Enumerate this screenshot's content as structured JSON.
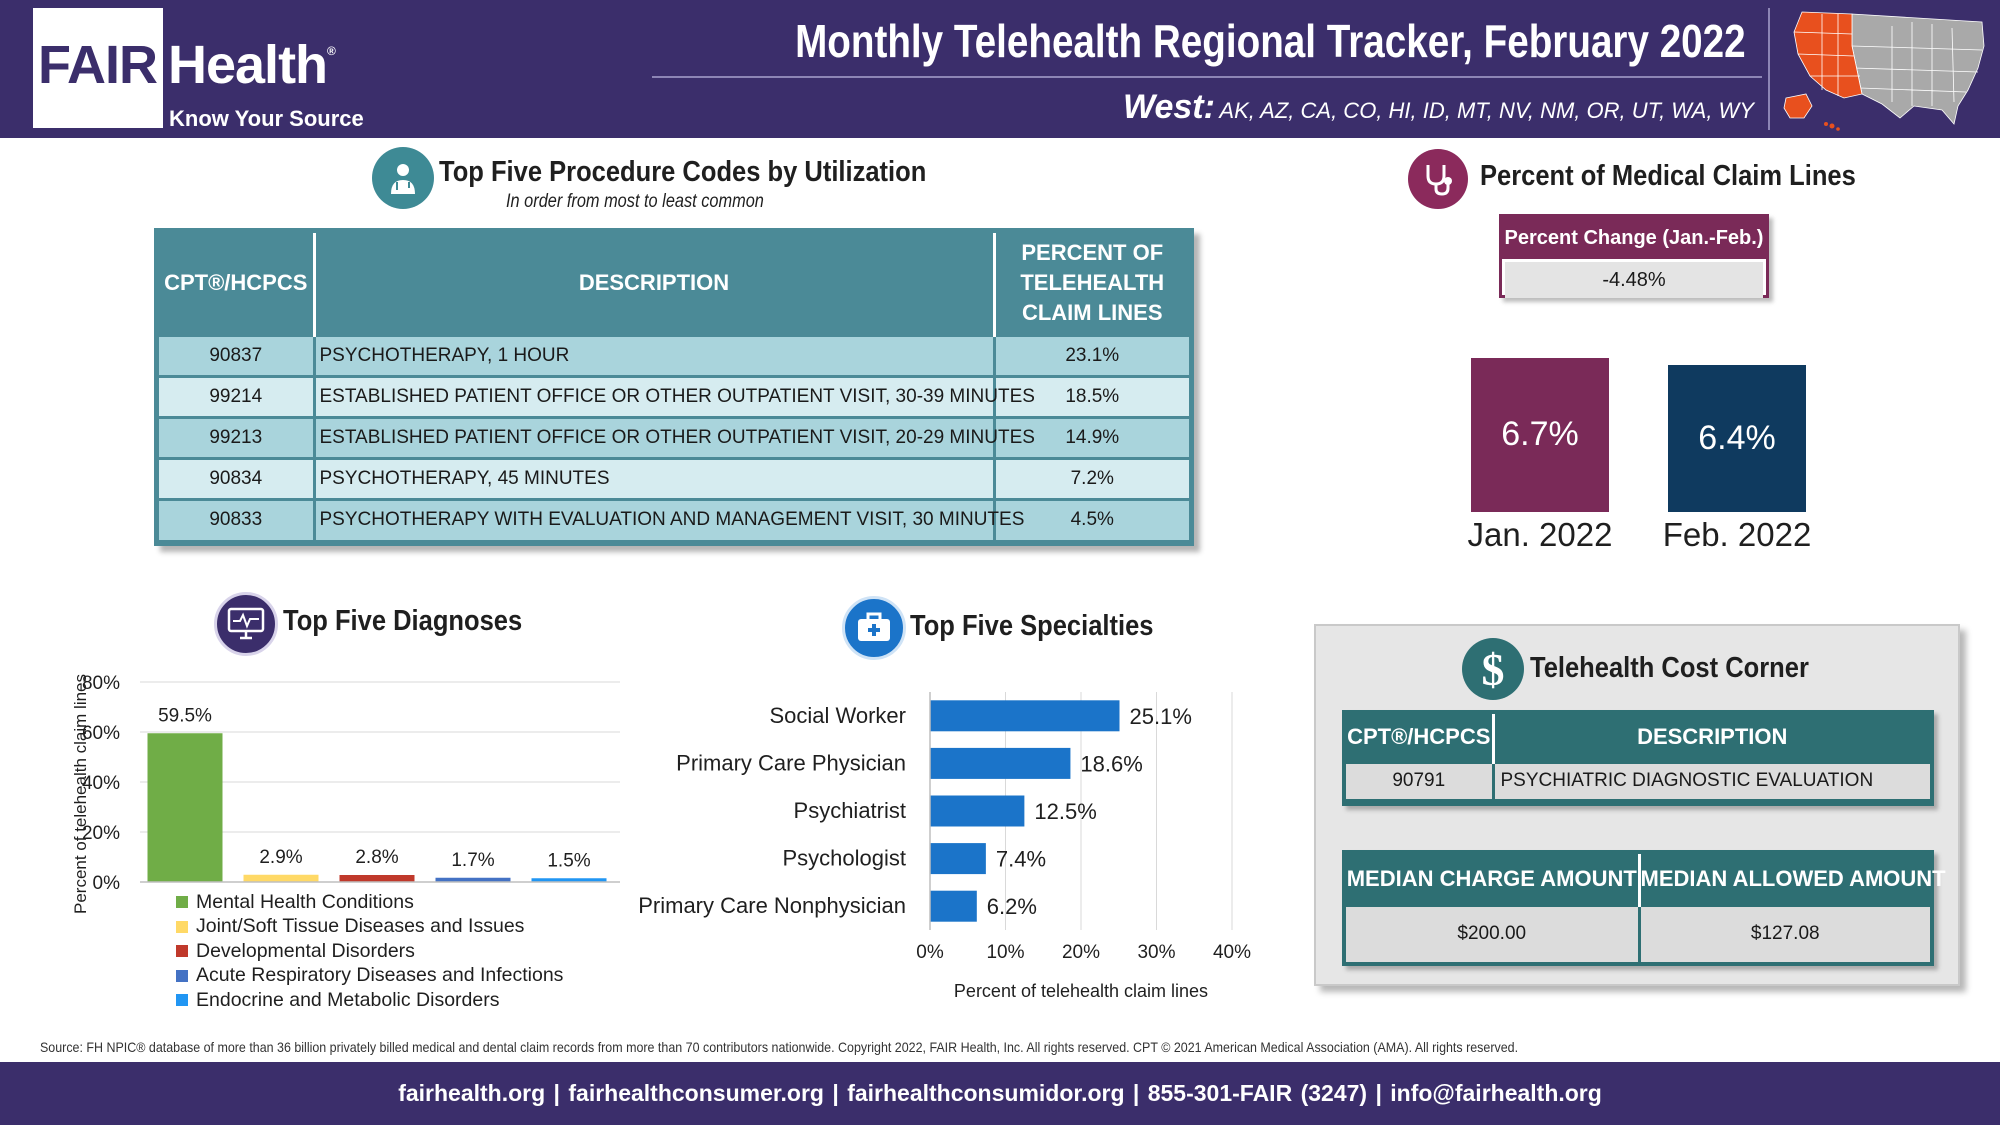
{
  "header": {
    "logo_fair": "FAIR",
    "logo_health": "Health",
    "logo_reg": "®",
    "logo_tagline": "Know Your Source",
    "title": "Monthly Telehealth Regional Tracker, February 2022",
    "region_name": "West:",
    "region_states": "AK, AZ, CA, CO, HI, ID, MT, NV, NM, OR, UT, WA, WY",
    "map_highlight_color": "#e8501e",
    "map_base_color": "#a9a9a9"
  },
  "procedures": {
    "title": "Top Five Procedure Codes by Utilization",
    "subtitle": "In order from most to least common",
    "icon": "doctor-icon",
    "columns": [
      "CPT®/HCPCS",
      "DESCRIPTION",
      "PERCENT OF TELEHEALTH CLAIM LINES"
    ],
    "rows": [
      {
        "code": "90837",
        "description": "PSYCHOTHERAPY, 1 HOUR",
        "percent": "23.1%"
      },
      {
        "code": "99214",
        "description": "ESTABLISHED PATIENT OFFICE OR OTHER OUTPATIENT VISIT, 30-39 MINUTES",
        "percent": "18.5%"
      },
      {
        "code": "99213",
        "description": "ESTABLISHED PATIENT OFFICE OR OTHER OUTPATIENT VISIT, 20-29 MINUTES",
        "percent": "14.9%"
      },
      {
        "code": "90834",
        "description": "PSYCHOTHERAPY, 45 MINUTES",
        "percent": "7.2%"
      },
      {
        "code": "90833",
        "description": "PSYCHOTHERAPY WITH EVALUATION AND MANAGEMENT VISIT, 30 MINUTES",
        "percent": "4.5%"
      }
    ]
  },
  "medical_claims": {
    "title": "Percent of Medical Claim Lines",
    "icon": "stethoscope-icon",
    "change_label": "Percent Change (Jan.-Feb.)",
    "change_value": "-4.48%",
    "bars": [
      {
        "label": "Jan. 2022",
        "value": 6.7,
        "display": "6.7%",
        "color": "#7a2a58"
      },
      {
        "label": "Feb. 2022",
        "value": 6.4,
        "display": "6.4%",
        "color": "#0f3a5f"
      }
    ]
  },
  "chart_data": [
    {
      "type": "bar",
      "title": "Top Five Diagnoses",
      "ylabel": "Percent of telehealth claim lines",
      "ylim": [
        0,
        80
      ],
      "yticks": [
        "0%",
        "20%",
        "40%",
        "60%",
        "80%"
      ],
      "categories": [
        "Mental Health Conditions",
        "Joint/Soft Tissue Diseases and Issues",
        "Developmental Disorders",
        "Acute Respiratory Diseases and Infections",
        "Endocrine and Metabolic Disorders"
      ],
      "values": [
        59.5,
        2.9,
        2.8,
        1.7,
        1.5
      ],
      "labels": [
        "59.5%",
        "2.9%",
        "2.8%",
        "1.7%",
        "1.5%"
      ],
      "colors": [
        "#70ad47",
        "#ffd966",
        "#c0392b",
        "#4472c4",
        "#2196f3"
      ],
      "legend": "bottom"
    },
    {
      "type": "bar",
      "orientation": "horizontal",
      "title": "Top Five Specialties",
      "xlabel": "Percent of telehealth claim lines",
      "xlim": [
        0,
        40
      ],
      "xticks": [
        "0%",
        "10%",
        "20%",
        "30%",
        "40%"
      ],
      "categories": [
        "Social Worker",
        "Primary Care Physician",
        "Psychiatrist",
        "Psychologist",
        "Primary Care Nonphysician"
      ],
      "values": [
        25.1,
        18.6,
        12.5,
        7.4,
        6.2
      ],
      "labels": [
        "25.1%",
        "18.6%",
        "12.5%",
        "7.4%",
        "6.2%"
      ],
      "color": "#1b74c9"
    }
  ],
  "sections": {
    "diagnoses_title": "Top Five Diagnoses",
    "diagnoses_icon": "monitor-heartbeat-icon",
    "specialties_title": "Top Five Specialties",
    "specialties_icon": "medical-kit-icon"
  },
  "cost_corner": {
    "title": "Telehealth Cost Corner",
    "icon": "dollar-icon",
    "code_header": "CPT®/HCPCS",
    "description_header": "DESCRIPTION",
    "code": "90791",
    "description": "PSYCHIATRIC DIAGNOSTIC EVALUATION",
    "median_charge_header": "MEDIAN CHARGE AMOUNT",
    "median_allowed_header": "MEDIAN ALLOWED AMOUNT",
    "median_charge": "$200.00",
    "median_allowed": "$127.08"
  },
  "footer": {
    "source": "Source: FH NPIC® database of more than 36 billion privately billed medical and dental claim records from more than 70 contributors nationwide. Copyright 2022, FAIR Health, Inc. All rights reserved. CPT © 2021 American Medical Association (AMA). All rights reserved.",
    "links": "fairhealth.org  |  fairhealthconsumer.org  |  fairhealthconsumidor.org  |  855-301-FAIR (3247)  |  info@fairhealth.org"
  }
}
